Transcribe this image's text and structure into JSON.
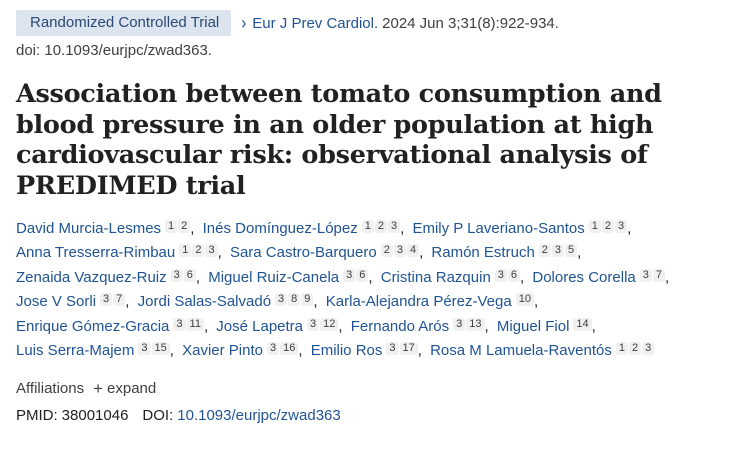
{
  "header": {
    "badge": "Randomized Controlled Trial",
    "journal": "Eur J Prev Cardiol.",
    "citation": "2024 Jun 3;31(8):922-934.",
    "doi_line": "doi: 10.1093/eurjpc/zwad363."
  },
  "title": "Association between tomato consumption and blood pressure in an older population at high cardiovascular risk: observational analysis of PREDIMED trial",
  "authors": [
    {
      "name": "David Murcia-Lesmes",
      "affs": [
        "1",
        "2"
      ]
    },
    {
      "name": "Inés Domínguez-López",
      "affs": [
        "1",
        "2",
        "3"
      ]
    },
    {
      "name": "Emily P Laveriano-Santos",
      "affs": [
        "1",
        "2",
        "3"
      ]
    },
    {
      "name": "Anna Tresserra-Rimbau",
      "affs": [
        "1",
        "2",
        "3"
      ]
    },
    {
      "name": "Sara Castro-Barquero",
      "affs": [
        "2",
        "3",
        "4"
      ]
    },
    {
      "name": "Ramón Estruch",
      "affs": [
        "2",
        "3",
        "5"
      ]
    },
    {
      "name": "Zenaida Vazquez-Ruiz",
      "affs": [
        "3",
        "6"
      ]
    },
    {
      "name": "Miguel Ruiz-Canela",
      "affs": [
        "3",
        "6"
      ]
    },
    {
      "name": "Cristina Razquin",
      "affs": [
        "3",
        "6"
      ]
    },
    {
      "name": "Dolores Corella",
      "affs": [
        "3",
        "7"
      ]
    },
    {
      "name": "Jose V Sorli",
      "affs": [
        "3",
        "7"
      ]
    },
    {
      "name": "Jordi Salas-Salvadó",
      "affs": [
        "3",
        "8",
        "9"
      ]
    },
    {
      "name": "Karla-Alejandra Pérez-Vega",
      "affs": [
        "10"
      ]
    },
    {
      "name": "Enrique Gómez-Gracia",
      "affs": [
        "3",
        "11"
      ]
    },
    {
      "name": "José Lapetra",
      "affs": [
        "3",
        "12"
      ]
    },
    {
      "name": "Fernando Arós",
      "affs": [
        "3",
        "13"
      ]
    },
    {
      "name": "Miguel Fiol",
      "affs": [
        "14"
      ]
    },
    {
      "name": "Luis Serra-Majem",
      "affs": [
        "3",
        "15"
      ]
    },
    {
      "name": "Xavier Pinto",
      "affs": [
        "3",
        "16"
      ]
    },
    {
      "name": "Emilio Ros",
      "affs": [
        "3",
        "17"
      ]
    },
    {
      "name": "Rosa M Lamuela-Raventós",
      "affs": [
        "1",
        "2",
        "3"
      ]
    }
  ],
  "affiliations": {
    "label": "Affiliations",
    "expand_label": "expand",
    "plus_icon": "+"
  },
  "ids": {
    "pmid_label": "PMID:",
    "pmid": "38001046",
    "doi_label": "DOI:",
    "doi": "10.1093/eurjpc/zwad363"
  },
  "icons": {
    "chevron": "›"
  },
  "colors": {
    "link": "#205493",
    "badge_bg": "#dce4ef",
    "text": "#212121"
  }
}
